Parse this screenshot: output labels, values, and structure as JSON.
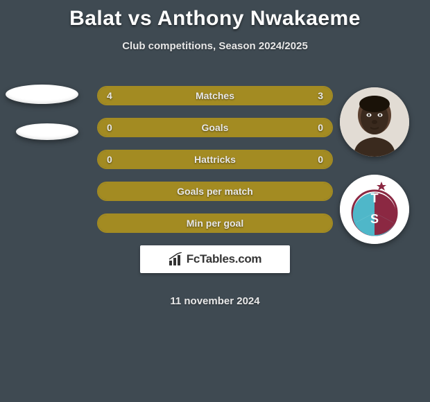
{
  "title": "Balat vs Anthony Nwakaeme",
  "subtitle": "Club competitions, Season 2024/2025",
  "date": "11 november 2024",
  "brand": "FcTables.com",
  "colors": {
    "background": "#3f4a52",
    "bar_border": "#a38b22",
    "fill_left": "#a38b22",
    "fill_right": "#a38b22",
    "text": "#e8e8e8",
    "club_primary": "#8b2842",
    "club_secondary": "#4fb7c9"
  },
  "bars": [
    {
      "label": "Matches",
      "left": "4",
      "right": "3",
      "left_pct": 57,
      "right_pct": 43
    },
    {
      "label": "Goals",
      "left": "0",
      "right": "0",
      "left_pct": 50,
      "right_pct": 50
    },
    {
      "label": "Hattricks",
      "left": "0",
      "right": "0",
      "left_pct": 50,
      "right_pct": 50
    },
    {
      "label": "Goals per match",
      "left": "",
      "right": "",
      "left_pct": 100,
      "right_pct": 0
    },
    {
      "label": "Min per goal",
      "left": "",
      "right": "",
      "left_pct": 100,
      "right_pct": 0
    }
  ],
  "icons": {
    "player_avatar": "player-head",
    "club_badge": "trabzonspor-badge",
    "chart_icon": "bar-chart-icon"
  }
}
